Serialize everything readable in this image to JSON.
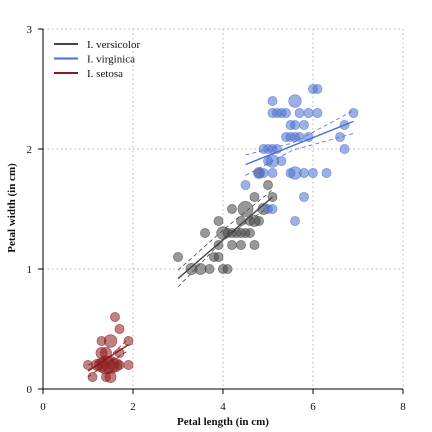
{
  "chart_data": {
    "type": "scatter",
    "xlabel": "Petal length (in cm)",
    "ylabel": "Petal width (in cm)",
    "xlim": [
      0,
      8
    ],
    "ylim": [
      0,
      3
    ],
    "x_ticks": [
      0,
      2,
      4,
      6,
      8
    ],
    "y_ticks": [
      0,
      1,
      2,
      3
    ],
    "x_tick_labels": [
      "0",
      "2",
      "4",
      "6",
      "8"
    ],
    "y_tick_labels": [
      "0",
      "1",
      "2",
      "3"
    ],
    "grid": "dotted at ticks",
    "legend_position": "top-left",
    "series": [
      {
        "name": "I. versicolor",
        "color": "#444444",
        "points": [
          {
            "x": 3.0,
            "y": 1.1,
            "n": 1
          },
          {
            "x": 3.3,
            "y": 1.0,
            "n": 2
          },
          {
            "x": 3.5,
            "y": 1.0,
            "n": 2
          },
          {
            "x": 3.6,
            "y": 1.3,
            "n": 1
          },
          {
            "x": 3.7,
            "y": 1.0,
            "n": 1
          },
          {
            "x": 3.8,
            "y": 1.1,
            "n": 1
          },
          {
            "x": 3.9,
            "y": 1.1,
            "n": 1
          },
          {
            "x": 3.9,
            "y": 1.2,
            "n": 1
          },
          {
            "x": 3.9,
            "y": 1.4,
            "n": 1
          },
          {
            "x": 4.0,
            "y": 1.0,
            "n": 1
          },
          {
            "x": 4.0,
            "y": 1.3,
            "n": 3
          },
          {
            "x": 4.1,
            "y": 1.0,
            "n": 1
          },
          {
            "x": 4.1,
            "y": 1.3,
            "n": 1
          },
          {
            "x": 4.2,
            "y": 1.2,
            "n": 1
          },
          {
            "x": 4.2,
            "y": 1.3,
            "n": 1
          },
          {
            "x": 4.2,
            "y": 1.5,
            "n": 1
          },
          {
            "x": 4.3,
            "y": 1.3,
            "n": 1
          },
          {
            "x": 4.4,
            "y": 1.2,
            "n": 1
          },
          {
            "x": 4.4,
            "y": 1.3,
            "n": 1
          },
          {
            "x": 4.4,
            "y": 1.4,
            "n": 1
          },
          {
            "x": 4.5,
            "y": 1.5,
            "n": 5
          },
          {
            "x": 4.5,
            "y": 1.3,
            "n": 1
          },
          {
            "x": 4.6,
            "y": 1.3,
            "n": 1
          },
          {
            "x": 4.6,
            "y": 1.4,
            "n": 1
          },
          {
            "x": 4.7,
            "y": 1.2,
            "n": 1
          },
          {
            "x": 4.7,
            "y": 1.4,
            "n": 2
          },
          {
            "x": 4.7,
            "y": 1.6,
            "n": 1
          },
          {
            "x": 4.8,
            "y": 1.4,
            "n": 1
          },
          {
            "x": 4.8,
            "y": 1.8,
            "n": 1
          },
          {
            "x": 4.9,
            "y": 1.5,
            "n": 2
          },
          {
            "x": 5.0,
            "y": 1.7,
            "n": 1
          },
          {
            "x": 5.1,
            "y": 1.6,
            "n": 1
          }
        ],
        "fit": {
          "x": [
            3.0,
            5.1
          ],
          "y": [
            0.92,
            1.6
          ]
        },
        "ci_upper": {
          "x": [
            3.0,
            4.05,
            5.1
          ],
          "y": [
            0.99,
            1.34,
            1.66
          ]
        },
        "ci_lower": {
          "x": [
            3.0,
            4.05,
            5.1
          ],
          "y": [
            0.85,
            1.26,
            1.54
          ]
        }
      },
      {
        "name": "I. virginica",
        "color": "#4a6fcf",
        "points": [
          {
            "x": 4.5,
            "y": 1.7,
            "n": 1
          },
          {
            "x": 4.8,
            "y": 1.8,
            "n": 2
          },
          {
            "x": 4.9,
            "y": 1.8,
            "n": 1
          },
          {
            "x": 4.9,
            "y": 2.0,
            "n": 1
          },
          {
            "x": 5.0,
            "y": 1.5,
            "n": 1
          },
          {
            "x": 5.0,
            "y": 1.9,
            "n": 1
          },
          {
            "x": 5.0,
            "y": 2.0,
            "n": 1
          },
          {
            "x": 5.1,
            "y": 1.5,
            "n": 1
          },
          {
            "x": 5.1,
            "y": 1.8,
            "n": 1
          },
          {
            "x": 5.1,
            "y": 1.9,
            "n": 3
          },
          {
            "x": 5.1,
            "y": 2.0,
            "n": 1
          },
          {
            "x": 5.1,
            "y": 2.3,
            "n": 1
          },
          {
            "x": 5.1,
            "y": 2.4,
            "n": 1
          },
          {
            "x": 5.2,
            "y": 2.0,
            "n": 1
          },
          {
            "x": 5.2,
            "y": 2.3,
            "n": 1
          },
          {
            "x": 5.3,
            "y": 1.9,
            "n": 1
          },
          {
            "x": 5.3,
            "y": 2.3,
            "n": 1
          },
          {
            "x": 5.4,
            "y": 2.1,
            "n": 1
          },
          {
            "x": 5.4,
            "y": 2.3,
            "n": 1
          },
          {
            "x": 5.5,
            "y": 1.8,
            "n": 1
          },
          {
            "x": 5.5,
            "y": 2.1,
            "n": 1
          },
          {
            "x": 5.5,
            "y": 2.2,
            "n": 1
          },
          {
            "x": 5.6,
            "y": 1.4,
            "n": 1
          },
          {
            "x": 5.6,
            "y": 1.8,
            "n": 3
          },
          {
            "x": 5.6,
            "y": 2.1,
            "n": 1
          },
          {
            "x": 5.6,
            "y": 2.2,
            "n": 1
          },
          {
            "x": 5.6,
            "y": 2.4,
            "n": 3
          },
          {
            "x": 5.7,
            "y": 2.1,
            "n": 1
          },
          {
            "x": 5.7,
            "y": 2.3,
            "n": 1
          },
          {
            "x": 5.8,
            "y": 1.6,
            "n": 1
          },
          {
            "x": 5.8,
            "y": 1.8,
            "n": 1
          },
          {
            "x": 5.8,
            "y": 2.2,
            "n": 1
          },
          {
            "x": 5.9,
            "y": 2.1,
            "n": 1
          },
          {
            "x": 5.9,
            "y": 2.3,
            "n": 1
          },
          {
            "x": 6.0,
            "y": 1.8,
            "n": 1
          },
          {
            "x": 6.0,
            "y": 2.5,
            "n": 1
          },
          {
            "x": 6.1,
            "y": 2.3,
            "n": 1
          },
          {
            "x": 6.1,
            "y": 2.5,
            "n": 1
          },
          {
            "x": 6.3,
            "y": 1.8,
            "n": 1
          },
          {
            "x": 6.6,
            "y": 2.1,
            "n": 1
          },
          {
            "x": 6.7,
            "y": 2.0,
            "n": 1
          },
          {
            "x": 6.7,
            "y": 2.2,
            "n": 1
          },
          {
            "x": 6.9,
            "y": 2.3,
            "n": 1
          }
        ],
        "fit": {
          "x": [
            4.5,
            6.9
          ],
          "y": [
            1.87,
            2.23
          ]
        },
        "ci_upper": {
          "x": [
            4.5,
            5.55,
            6.9
          ],
          "y": [
            1.95,
            2.05,
            2.32
          ]
        },
        "ci_lower": {
          "x": [
            4.5,
            5.55,
            6.9
          ],
          "y": [
            1.78,
            1.99,
            2.13
          ]
        }
      },
      {
        "name": "I. setosa",
        "color": "#8b1a1a",
        "points": [
          {
            "x": 1.0,
            "y": 0.2,
            "n": 1
          },
          {
            "x": 1.1,
            "y": 0.1,
            "n": 1
          },
          {
            "x": 1.2,
            "y": 0.2,
            "n": 2
          },
          {
            "x": 1.3,
            "y": 0.2,
            "n": 4
          },
          {
            "x": 1.3,
            "y": 0.3,
            "n": 2
          },
          {
            "x": 1.3,
            "y": 0.4,
            "n": 1
          },
          {
            "x": 1.4,
            "y": 0.1,
            "n": 1
          },
          {
            "x": 1.4,
            "y": 0.2,
            "n": 8
          },
          {
            "x": 1.4,
            "y": 0.3,
            "n": 2
          },
          {
            "x": 1.5,
            "y": 0.1,
            "n": 2
          },
          {
            "x": 1.5,
            "y": 0.2,
            "n": 7
          },
          {
            "x": 1.5,
            "y": 0.4,
            "n": 3
          },
          {
            "x": 1.6,
            "y": 0.2,
            "n": 4
          },
          {
            "x": 1.6,
            "y": 0.6,
            "n": 1
          },
          {
            "x": 1.7,
            "y": 0.2,
            "n": 1
          },
          {
            "x": 1.7,
            "y": 0.3,
            "n": 1
          },
          {
            "x": 1.7,
            "y": 0.5,
            "n": 1
          },
          {
            "x": 1.9,
            "y": 0.2,
            "n": 1
          },
          {
            "x": 1.9,
            "y": 0.4,
            "n": 1
          }
        ],
        "fit": {
          "x": [
            1.0,
            1.9
          ],
          "y": [
            0.15,
            0.37
          ]
        },
        "ci_upper": {
          "x": [
            1.0,
            1.45,
            1.9
          ],
          "y": [
            0.2,
            0.26,
            0.42
          ]
        },
        "ci_lower": {
          "x": [
            1.0,
            1.45,
            1.9
          ],
          "y": [
            0.1,
            0.22,
            0.32
          ]
        }
      }
    ]
  }
}
